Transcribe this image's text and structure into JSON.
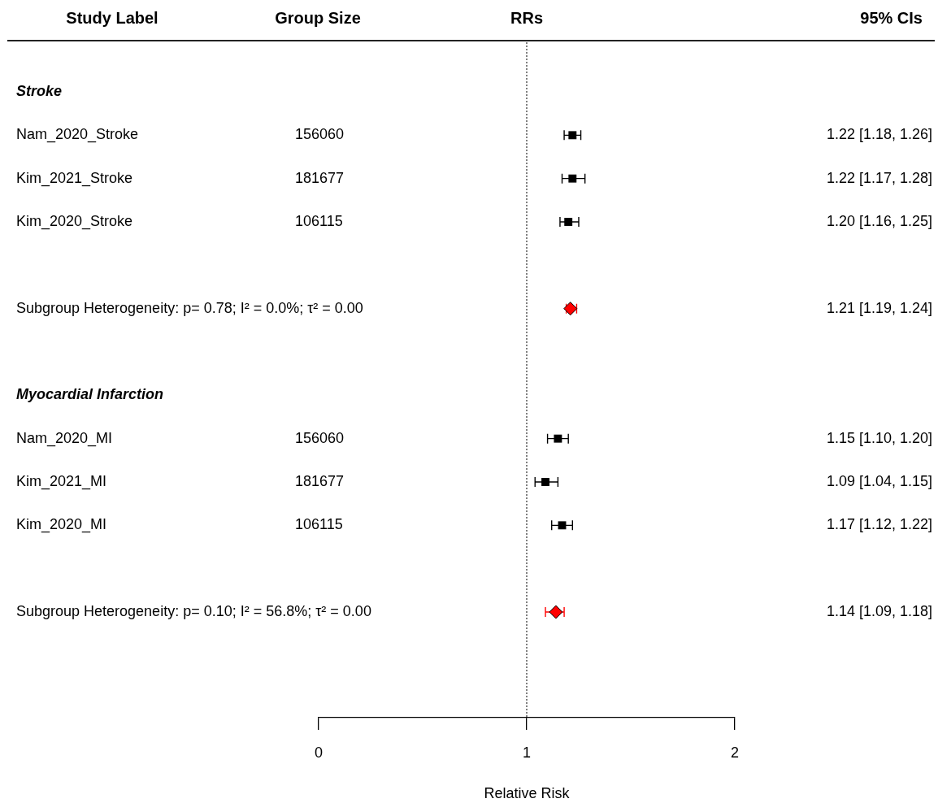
{
  "chart_data": {
    "type": "scatter",
    "orientation": "horizontal",
    "categories": [
      "Stroke",
      "Nam_2020_Stroke",
      "Kim_2021_Stroke",
      "Kim_2020_Stroke",
      null,
      "Subgroup Heterogeneity: p= 0.78; I² = 0.0%; τ² = 0.00",
      null,
      "Myocardial Infarction",
      "Nam_2020_MI",
      "Kim_2021_MI",
      "Kim_2020_MI",
      null,
      "Subgroup Heterogeneity: p= 0.10; I² = 56.8%; τ² = 0.00"
    ],
    "y2_categories": [
      null,
      "156060",
      "181677",
      "106115",
      null,
      null,
      null,
      null,
      "156060",
      "181677",
      "106115",
      null,
      null
    ],
    "series": [
      {
        "marker": "square",
        "colors": [
          null,
          "#000000",
          "#000000",
          "#000000",
          null,
          "#ff0000",
          null,
          null,
          "#000000",
          "#000000",
          "#000000",
          null,
          "#ff0000"
        ],
        "values": [
          null,
          1.22,
          1.22,
          1.2,
          null,
          1.21,
          null,
          null,
          1.15,
          1.09,
          1.17,
          null,
          1.14
        ],
        "errors": [
          null,
          [
            1.18,
            1.26
          ],
          [
            1.17,
            1.28
          ],
          [
            1.16,
            1.25
          ],
          null,
          [
            1.19,
            1.24
          ],
          null,
          null,
          [
            1.1,
            1.2
          ],
          [
            1.04,
            1.15
          ],
          [
            1.12,
            1.22
          ],
          null,
          [
            1.09,
            1.18
          ]
        ],
        "value_labels": [
          null,
          "1.22 [1.18, 1.26]",
          "1.22 [1.17, 1.28]",
          "1.20 [1.16, 1.25]",
          null,
          "1.21 [1.19, 1.24]",
          null,
          null,
          "1.15 [1.10, 1.20]",
          "1.09 [1.04, 1.15]",
          "1.17 [1.12, 1.22]",
          null,
          "1.14 [1.09, 1.18]"
        ]
      }
    ],
    "xlim": [
      0,
      2
    ],
    "xticks": [
      0,
      1,
      2
    ],
    "xlabel": "Relative Risk",
    "ref_lines": [
      {
        "axis": "x",
        "value": 1,
        "line_style": "dotted",
        "color": "#000000"
      }
    ],
    "annotations": [
      "Study Label",
      "Group Size",
      "RRs",
      "95% CIs"
    ]
  }
}
